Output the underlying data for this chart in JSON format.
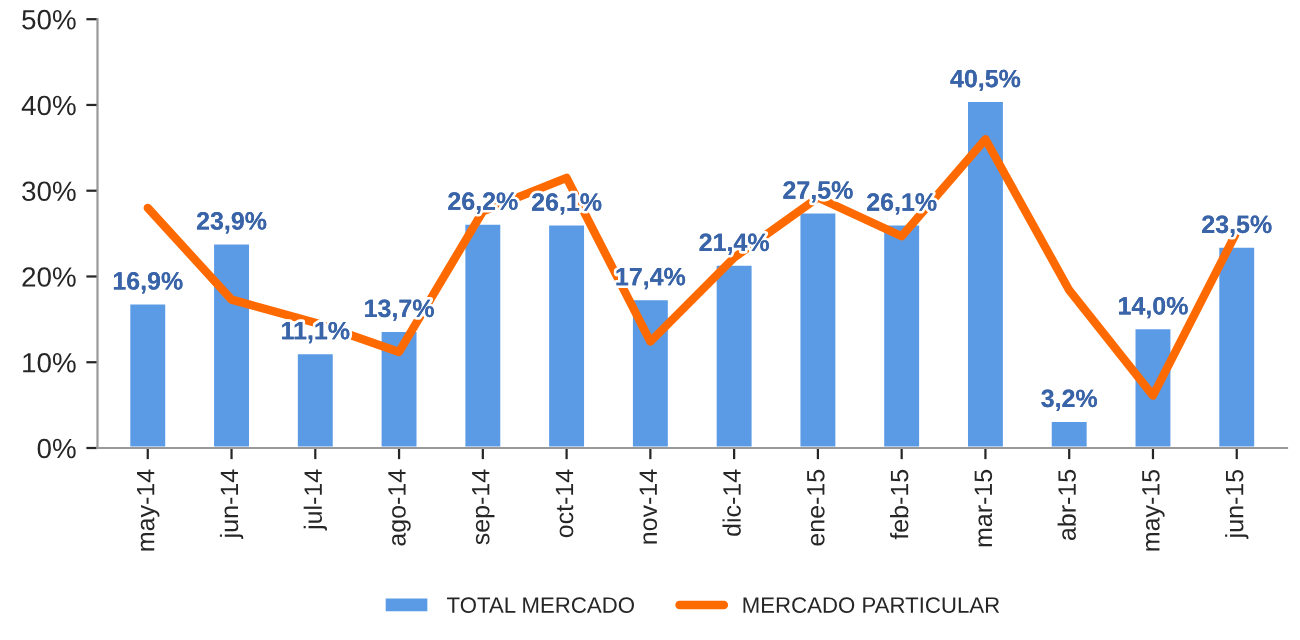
{
  "chart_data": {
    "type": "bar",
    "categories": [
      "may-14",
      "jun-14",
      "jul-14",
      "ago-14",
      "sep-14",
      "oct-14",
      "nov-14",
      "dic-14",
      "ene-15",
      "feb-15",
      "mar-15",
      "abr-15",
      "may-15",
      "jun-15"
    ],
    "series": [
      {
        "name": "TOTAL MERCADO",
        "color": "#5b9be6",
        "values": [
          16.9,
          23.9,
          11.1,
          13.7,
          26.2,
          26.1,
          17.4,
          21.4,
          27.5,
          26.1,
          40.5,
          3.2,
          14.0,
          23.5
        ],
        "value_labels": [
          "16,9%",
          "23,9%",
          "11,1%",
          "13,7%",
          "26,2%",
          "26,1%",
          "17,4%",
          "21,4%",
          "27,5%",
          "26,1%",
          "40,5%",
          "3,2%",
          "14,0%",
          "23,5%"
        ]
      },
      {
        "name": "MERCADO PARTICULAR",
        "type": "line",
        "color": "#ff6a00",
        "values": [
          28,
          17.3,
          14.6,
          11.2,
          27.6,
          31.5,
          12.4,
          22.2,
          29.2,
          24.7,
          36,
          18.4,
          6.1,
          25.2
        ]
      }
    ],
    "ylim": [
      0,
      50
    ],
    "yticks": [
      {
        "value": 0,
        "label": "0%"
      },
      {
        "value": 10,
        "label": "10%"
      },
      {
        "value": 20,
        "label": "20%"
      },
      {
        "value": 30,
        "label": "30%"
      },
      {
        "value": 40,
        "label": "40%"
      },
      {
        "value": 50,
        "label": "50%"
      }
    ],
    "grid": false,
    "legend": "bottom"
  }
}
